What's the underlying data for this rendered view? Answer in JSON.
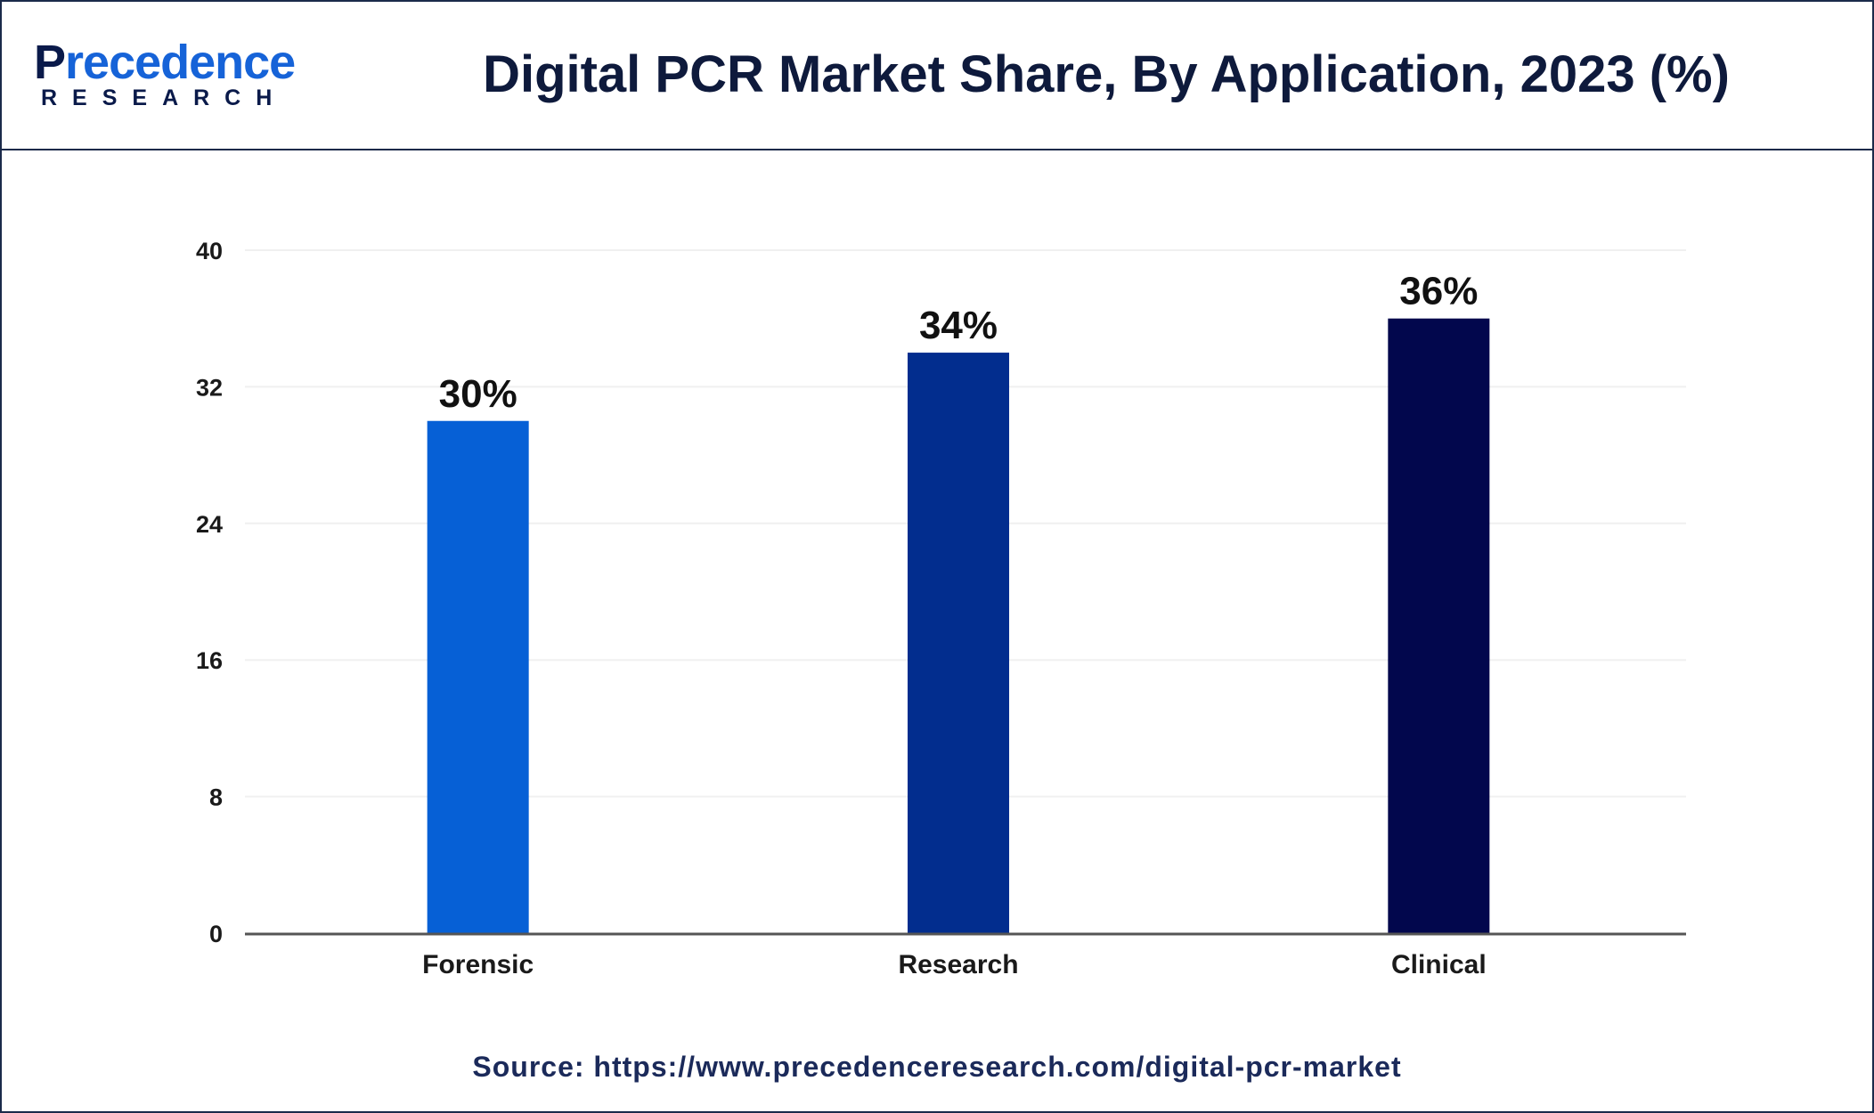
{
  "header": {
    "logo_main_first": "P",
    "logo_main_rest": "recedence",
    "logo_sub": "RESEARCH",
    "title": "Digital PCR Market Share, By Application, 2023 (%)"
  },
  "source": "Source: https://www.precedenceresearch.com/digital-pcr-market",
  "chart_data": {
    "type": "bar",
    "title": "Digital PCR Market Share, By Application, 2023 (%)",
    "categories": [
      "Forensic",
      "Research",
      "Clinical"
    ],
    "values": [
      30,
      34,
      36
    ],
    "data_labels": [
      "30%",
      "34%",
      "36%"
    ],
    "colors": [
      "#0660d6",
      "#022d8e",
      "#02074d"
    ],
    "ylim": [
      0,
      40
    ],
    "yticks": [
      0,
      8,
      16,
      24,
      32,
      40
    ],
    "xlabel": "",
    "ylabel": "",
    "grid": true,
    "legend": "none"
  }
}
